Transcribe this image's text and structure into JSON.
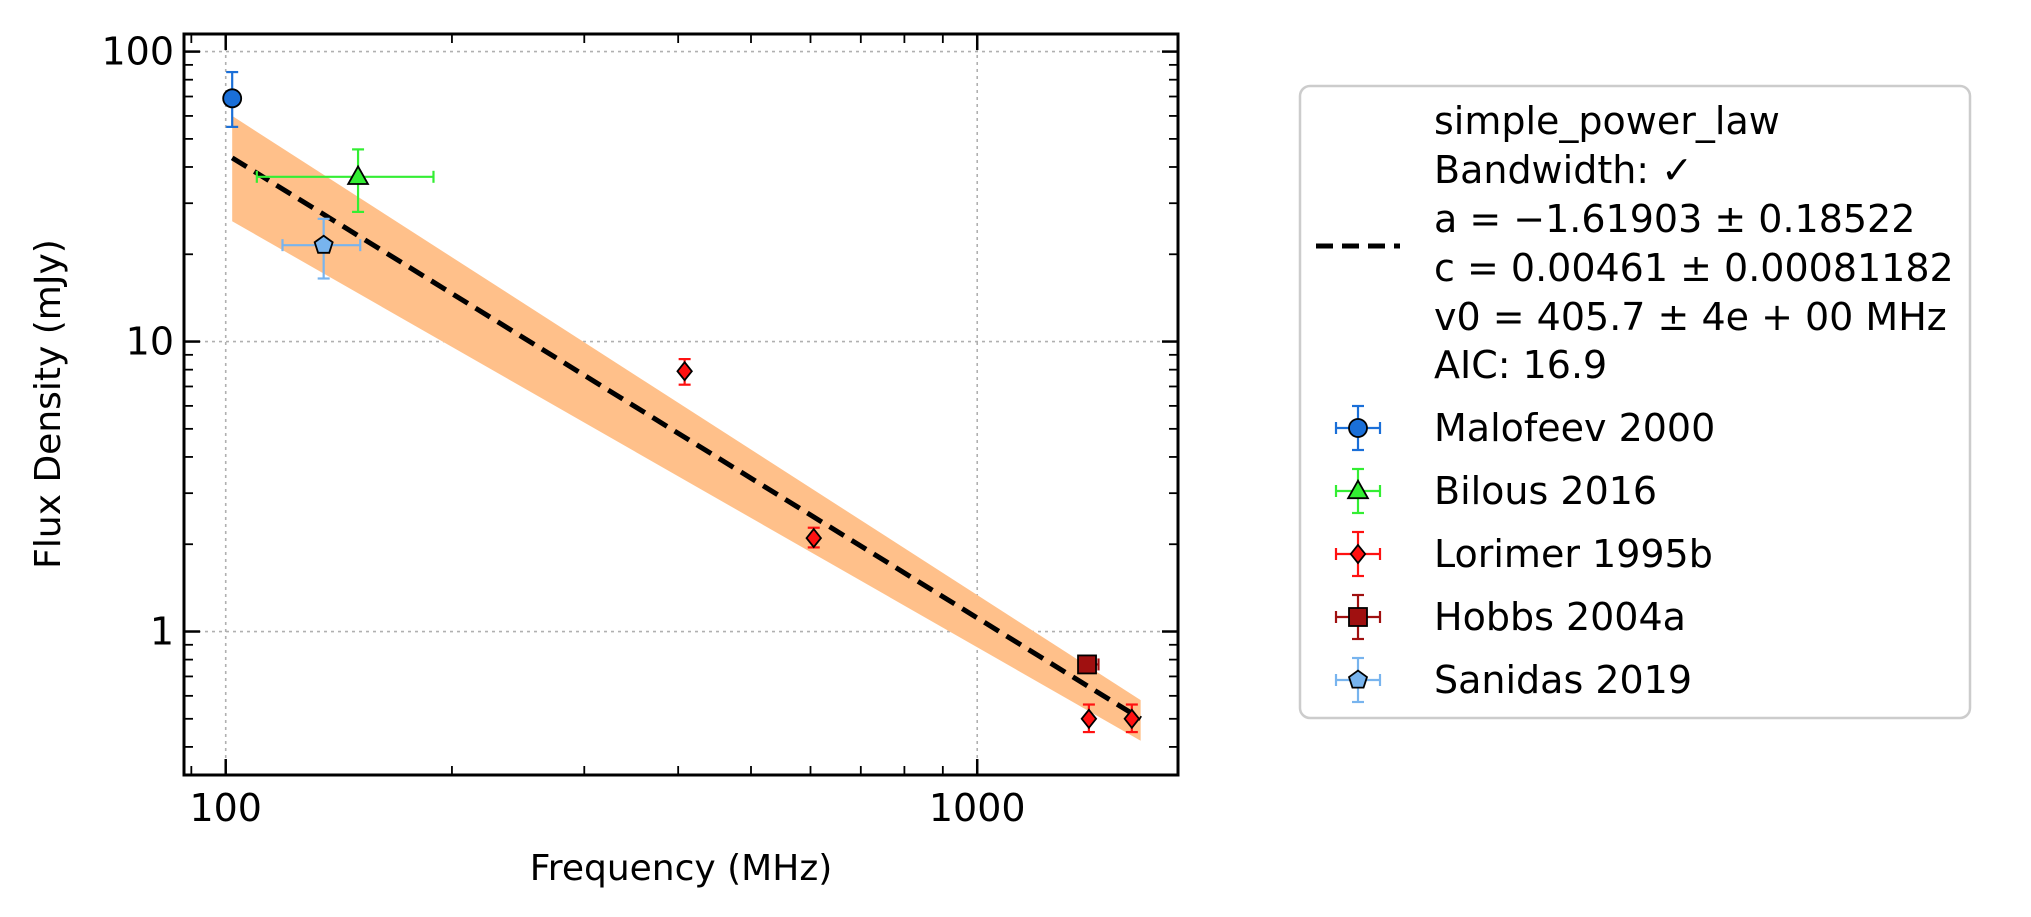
{
  "chart_data": {
    "type": "scatter",
    "xlabel": "Frequency (MHz)",
    "ylabel": "Flux Density (mJy)",
    "x_scale": "log",
    "y_scale": "log",
    "xlim": [
      88,
      1850
    ],
    "ylim": [
      0.32,
      115
    ],
    "x_ticks": [
      {
        "value": 100,
        "label": "100"
      },
      {
        "value": 1000,
        "label": "1000"
      }
    ],
    "y_ticks": [
      {
        "value": 1,
        "label": "1"
      },
      {
        "value": 10,
        "label": "10"
      },
      {
        "value": 100,
        "label": "100"
      }
    ],
    "grid": true,
    "legend_position": "outside-right",
    "fit": {
      "name": "simple_power_law",
      "bandwidth_label": "Bandwidth: ✓",
      "a_label": "a = −1.61903 ± 0.18522",
      "c_label": "c = 0.00461 ± 0.00081182",
      "v0_label": "v0 = 405.7 ± 4e + 00 MHz",
      "aic_label": "AIC: 16.9",
      "a": -1.61903,
      "c": 0.00461,
      "v0": 405.7,
      "line_color": "#000000",
      "band_color": "#ffc08a",
      "line": {
        "x": [
          102,
          1650
        ],
        "y": [
          43,
          0.5
        ]
      },
      "band": {
        "x": [
          102,
          1650
        ],
        "y_low": [
          26,
          0.42
        ],
        "y_high": [
          60,
          0.58
        ]
      }
    },
    "series": [
      {
        "name": "Malofeev 2000",
        "marker": "circle",
        "color": "#1a6fd8",
        "points": [
          {
            "x": 102,
            "y": 69,
            "y_low": 55,
            "y_high": 85,
            "x_low": 102,
            "x_high": 102
          }
        ]
      },
      {
        "name": "Bilous 2016",
        "marker": "triangle",
        "color": "#33ee33",
        "points": [
          {
            "x": 150,
            "y": 37,
            "y_low": 28,
            "y_high": 46,
            "x_low": 110,
            "x_high": 189
          }
        ]
      },
      {
        "name": "Lorimer 1995b",
        "marker": "diamond",
        "color": "#ff1111",
        "points": [
          {
            "x": 408,
            "y": 7.9,
            "y_low": 7.1,
            "y_high": 8.7,
            "x_low": 408,
            "x_high": 408
          },
          {
            "x": 606,
            "y": 2.1,
            "y_low": 1.95,
            "y_high": 2.28,
            "x_low": 606,
            "x_high": 606
          },
          {
            "x": 1408,
            "y": 0.5,
            "y_low": 0.45,
            "y_high": 0.56,
            "x_low": 1408,
            "x_high": 1408
          },
          {
            "x": 1606,
            "y": 0.5,
            "y_low": 0.45,
            "y_high": 0.56,
            "x_low": 1606,
            "x_high": 1606
          }
        ]
      },
      {
        "name": "Hobbs 2004a",
        "marker": "square",
        "color": "#a01010",
        "points": [
          {
            "x": 1400,
            "y": 0.77,
            "y_low": 0.72,
            "y_high": 0.82,
            "x_low": 1370,
            "x_high": 1450
          }
        ]
      },
      {
        "name": "Sanidas 2019",
        "marker": "pentagon",
        "color": "#78b4ee",
        "points": [
          {
            "x": 135,
            "y": 21.5,
            "y_low": 16.5,
            "y_high": 26.5,
            "x_low": 119,
            "x_high": 151
          }
        ]
      }
    ]
  }
}
